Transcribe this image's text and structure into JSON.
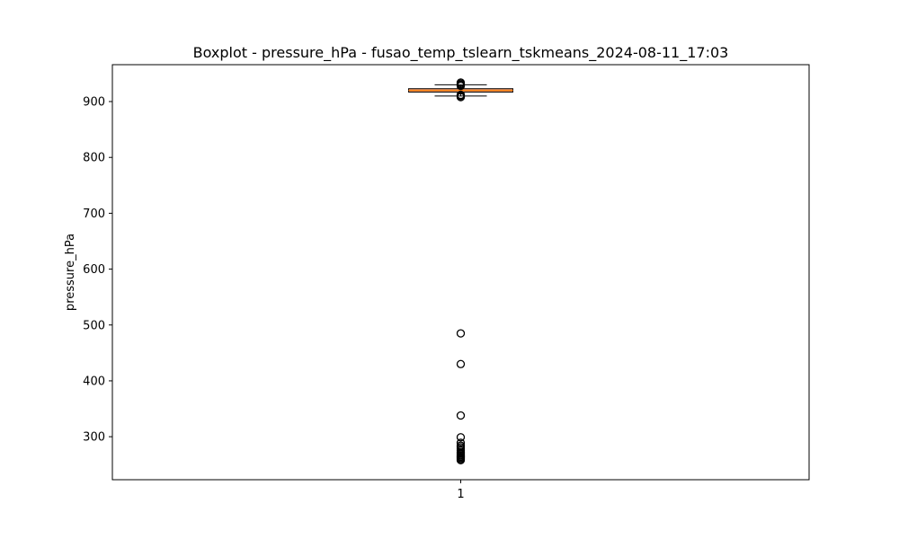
{
  "chart_data": {
    "type": "boxplot",
    "title": "Boxplot - pressure_hPa - fusao_temp_tslearn_tskmeans_2024-08-11_17:03",
    "xlabel": "",
    "ylabel": "pressure_hPa",
    "categories": [
      "1"
    ],
    "ylim": [
      223,
      966
    ],
    "yticks": [
      300,
      400,
      500,
      600,
      700,
      800,
      900
    ],
    "grid": false,
    "box": {
      "whisker_low": 910,
      "q1": 917,
      "median": 920,
      "q3": 923,
      "whisker_high": 930,
      "box_color": "#f4a582",
      "median_color": "#ff7f0e"
    },
    "outliers": [
      934,
      932,
      930,
      928,
      912,
      910,
      908,
      485,
      430,
      338,
      299,
      289,
      284,
      281,
      278,
      275,
      272,
      270,
      268,
      266,
      264,
      262,
      260,
      258
    ]
  }
}
